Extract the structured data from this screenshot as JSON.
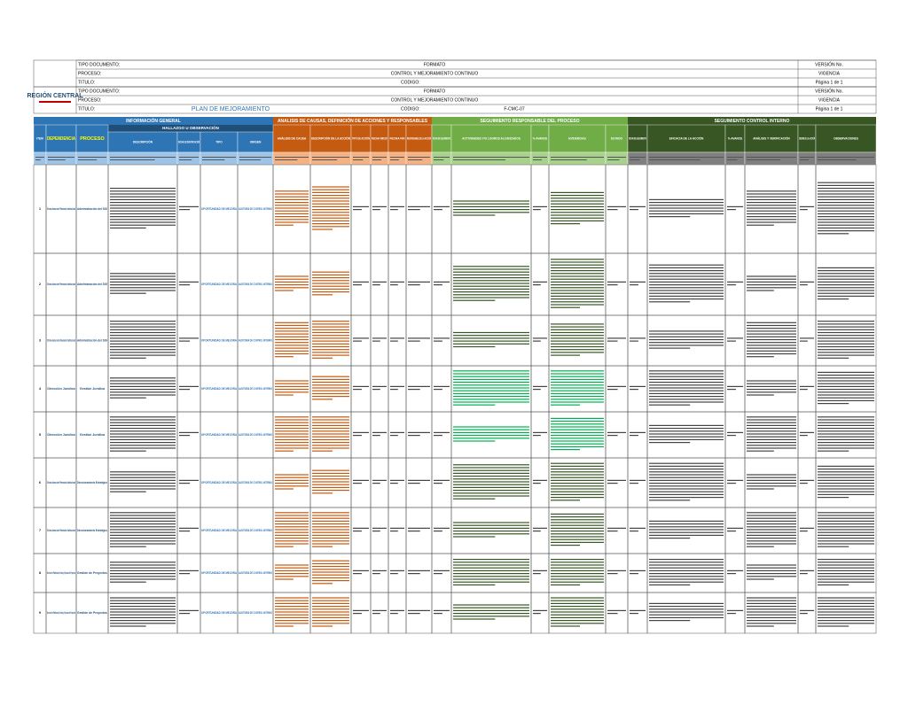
{
  "header": {
    "rows": [
      {
        "label": "TIPO DOCUMENTO:",
        "value": "FORMATO",
        "right": "VERSIÓN No."
      },
      {
        "label": "PROCESO:",
        "value": "CONTROL Y MEJORAMIENTO CONTINUO",
        "right": "VIGENCIA"
      },
      {
        "label": "TITULO:",
        "value": "CODIGO:",
        "right": "Página 1 de 1"
      }
    ],
    "logo": "REGIÓN CENTRAL",
    "title": "PLAN DE MEJORAMIENTO",
    "code": "F-CMC-07"
  },
  "sections": [
    "INFORMACIÓN GENERAL",
    "ANALISIS DE CAUSAS, DEFINICIÓN DE ACCIONES Y RESPONSABLES",
    "SEGUIMIENTO RESPONSABLE DEL PROCESO",
    "SEGUIMIENTO CONTROL INTERNO"
  ],
  "subsection": "HALLAZGO U OBSERVACIÓN",
  "columns": [
    "ITEM",
    "DEPENDENCIA",
    "PROCESO",
    "DESCRIPCIÓN",
    "FECHA DE IDENTIFICACIÓN",
    "TIPO",
    "ORIGEN",
    "ANÁLISIS DE CAUSA",
    "DESCRIPCIÓN DE LA ACCIÓN",
    "TIPO DE ACCIÓN",
    "FECHA INICIO",
    "FECHA FIN",
    "RESPONSABLE DE LA ACCIÓN",
    "FECHA DE SEGUIMIENTO",
    "ACTIVIDADES Y/O LOGROS ALCANZADOS",
    "% AVANCE",
    "EVIDENCIAS",
    "ESTADO",
    "FECHA DE SEGUIMIENTO",
    "EFICACIA DE LA ACCIÓN",
    "% AVANCE",
    "ANÁLISIS Y VERIFICACIÓN",
    "CIERRE DE LA ACCIÓN",
    "OBSERVACIONES"
  ],
  "rows": [
    {
      "item": "1",
      "dependencia": "Oficina Asesora de Planeación Institucional",
      "proceso": "Administración del SIG",
      "tipo": "OPORTUNIDAD DE MEJORA",
      "origen": "AUDITORIA DE CONTROL INTERNO"
    },
    {
      "item": "2",
      "dependencia": "Oficina Asesora de Planeación Institucional",
      "proceso": "Administración del SIG",
      "tipo": "OPORTUNIDAD DE MEJORA",
      "origen": "AUDITORIA DE CONTROL INTERNO"
    },
    {
      "item": "3",
      "dependencia": "Oficina Asesora de Planeación Institucional",
      "proceso": "Administración del SIG",
      "tipo": "OPORTUNIDAD DE MEJORA",
      "origen": "AUDITORIA DE CONTROL INTERNO"
    },
    {
      "item": "4",
      "dependencia": "Dirección Jurídica",
      "proceso": "Gestión Jurídica",
      "tipo": "OPORTUNIDAD DE MEJORA",
      "origen": "AUDITORIA DE CONTROL INTERNO"
    },
    {
      "item": "5",
      "dependencia": "Dirección Jurídica",
      "proceso": "Gestión Jurídica",
      "tipo": "OPORTUNIDAD DE MEJORA",
      "origen": "AUDITORIA DE CONTROL INTERNO"
    },
    {
      "item": "6",
      "dependencia": "Oficina Asesora de Planeación Institucional",
      "proceso": "Direccionamiento Estratégico",
      "tipo": "OPORTUNIDAD DE MEJORA",
      "origen": "AUDITORIA DE CONTROL INTERNO"
    },
    {
      "item": "7",
      "dependencia": "Oficina Asesora de Planeación Institucional",
      "proceso": "Direccionamiento Estratégico",
      "tipo": "OPORTUNIDAD DE MEJORA",
      "origen": "AUDITORIA DE CONTROL INTERNO"
    },
    {
      "item": "8",
      "dependencia": "Dirección de Planificación, Gestión y Ejecución de Proyectos",
      "proceso": "Gestión de Proyectos",
      "tipo": "OPORTUNIDAD DE MEJORA",
      "origen": "AUDITORIA DE CONTROL INTERNO"
    },
    {
      "item": "9",
      "dependencia": "Dirección de Planificación, Gestión y Ejecución de Proyectos",
      "proceso": "Gestión de Proyectos",
      "tipo": "OPORTUNIDAD DE MEJORA",
      "origen": "AUDITORIA DE CONTROL INTERNO"
    }
  ]
}
